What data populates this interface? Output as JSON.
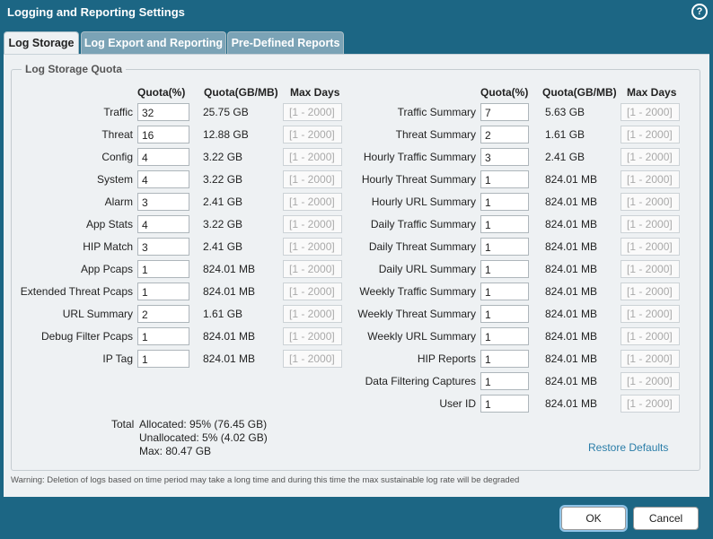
{
  "dialog": {
    "title": "Logging and Reporting Settings",
    "help_symbol": "?"
  },
  "tabs": [
    {
      "label": "Log Storage",
      "active": true
    },
    {
      "label": "Log Export and Reporting",
      "active": false
    },
    {
      "label": "Pre-Defined Reports",
      "active": false
    }
  ],
  "quota": {
    "legend": "Log Storage Quota",
    "headers": {
      "quota_pct": "Quota(%)",
      "quota_gb": "Quota(GB/MB)",
      "max_days": "Max Days"
    },
    "max_days_placeholder": "[1 - 2000]",
    "left": [
      {
        "label": "Traffic",
        "quota": "32",
        "size": "25.75 GB"
      },
      {
        "label": "Threat",
        "quota": "16",
        "size": "12.88 GB"
      },
      {
        "label": "Config",
        "quota": "4",
        "size": "3.22 GB"
      },
      {
        "label": "System",
        "quota": "4",
        "size": "3.22 GB"
      },
      {
        "label": "Alarm",
        "quota": "3",
        "size": "2.41 GB"
      },
      {
        "label": "App Stats",
        "quota": "4",
        "size": "3.22 GB"
      },
      {
        "label": "HIP Match",
        "quota": "3",
        "size": "2.41 GB"
      },
      {
        "label": "App Pcaps",
        "quota": "1",
        "size": "824.01 MB"
      },
      {
        "label": "Extended Threat Pcaps",
        "quota": "1",
        "size": "824.01 MB"
      },
      {
        "label": "URL Summary",
        "quota": "2",
        "size": "1.61 GB"
      },
      {
        "label": "Debug Filter Pcaps",
        "quota": "1",
        "size": "824.01 MB"
      },
      {
        "label": "IP Tag",
        "quota": "1",
        "size": "824.01 MB"
      }
    ],
    "right": [
      {
        "label": "Traffic Summary",
        "quota": "7",
        "size": "5.63 GB"
      },
      {
        "label": "Threat Summary",
        "quota": "2",
        "size": "1.61 GB"
      },
      {
        "label": "Hourly Traffic Summary",
        "quota": "3",
        "size": "2.41 GB"
      },
      {
        "label": "Hourly Threat Summary",
        "quota": "1",
        "size": "824.01 MB"
      },
      {
        "label": "Hourly URL Summary",
        "quota": "1",
        "size": "824.01 MB"
      },
      {
        "label": "Daily Traffic Summary",
        "quota": "1",
        "size": "824.01 MB"
      },
      {
        "label": "Daily Threat Summary",
        "quota": "1",
        "size": "824.01 MB"
      },
      {
        "label": "Daily URL Summary",
        "quota": "1",
        "size": "824.01 MB"
      },
      {
        "label": "Weekly Traffic Summary",
        "quota": "1",
        "size": "824.01 MB"
      },
      {
        "label": "Weekly Threat Summary",
        "quota": "1",
        "size": "824.01 MB"
      },
      {
        "label": "Weekly URL Summary",
        "quota": "1",
        "size": "824.01 MB"
      },
      {
        "label": "HIP Reports",
        "quota": "1",
        "size": "824.01 MB"
      },
      {
        "label": "Data Filtering Captures",
        "quota": "1",
        "size": "824.01 MB"
      },
      {
        "label": "User ID",
        "quota": "1",
        "size": "824.01 MB"
      }
    ],
    "total": {
      "label": "Total",
      "allocated": "Allocated: 95% (76.45 GB)",
      "unallocated": "Unallocated: 5% (4.02 GB)",
      "max": "Max: 80.47 GB"
    },
    "restore_label": "Restore Defaults"
  },
  "warning": "Warning: Deletion of logs based on time period may take a long time and during this time the max sustainable log rate will be degraded",
  "buttons": {
    "ok": "OK",
    "cancel": "Cancel"
  }
}
